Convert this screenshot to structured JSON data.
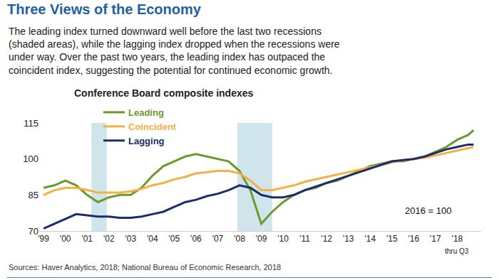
{
  "chart_data": {
    "type": "line",
    "title": "Three Views of the Economy",
    "subtitle": [
      "The leading index turned downward well before the last two recessions",
      "(shaded areas), while the lagging index dropped when the recessions were",
      "under way. Over the past two years, the leading index has outpaced the",
      "coincident index, suggesting the potential for continued economic growth."
    ],
    "chart_title": "Conference Board composite indexes",
    "annotations": [
      "2016 = 100",
      "thru Q3"
    ],
    "source": "Sources: Haver Analytics, 2018; National Bureau of Economic Research, 2018",
    "x": [
      1999,
      1999.5,
      2000,
      2000.5,
      2001,
      2001.5,
      2002,
      2002.5,
      2003,
      2003.5,
      2004,
      2004.5,
      2005,
      2005.5,
      2006,
      2006.5,
      2007,
      2007.5,
      2008,
      2008.5,
      2009,
      2009.5,
      2010,
      2010.5,
      2011,
      2011.5,
      2012,
      2012.5,
      2013,
      2013.5,
      2014,
      2014.5,
      2015,
      2015.5,
      2016,
      2016.5,
      2017,
      2017.5,
      2018,
      2018.5,
      2018.75
    ],
    "series": [
      {
        "name": "Leading",
        "color": "#6b9a2c",
        "values": [
          88,
          89,
          91,
          89,
          85,
          82,
          84,
          85,
          85,
          88,
          93,
          97,
          99,
          101,
          102,
          101,
          100,
          99,
          95,
          87,
          73,
          78,
          82,
          85,
          87,
          88,
          90,
          91,
          93,
          95,
          97,
          98,
          99,
          99,
          100,
          101,
          103,
          105,
          108,
          110,
          112
        ]
      },
      {
        "name": "Coincident",
        "color": "#f4b042",
        "values": [
          85,
          87,
          88,
          88,
          87,
          86,
          86,
          86,
          86.5,
          87.5,
          89,
          90,
          91.5,
          92.5,
          94,
          94.5,
          95,
          95,
          94,
          91,
          87,
          87,
          88,
          89,
          90.5,
          91.5,
          92.5,
          93.5,
          94.5,
          95.5,
          96.5,
          97.5,
          98.5,
          99.5,
          100,
          100.5,
          101.5,
          102.5,
          103.5,
          104.5,
          105
        ]
      },
      {
        "name": "Lagging",
        "color": "#1d2d6b",
        "values": [
          71,
          73,
          75,
          77,
          76.5,
          76,
          76,
          75.5,
          75.5,
          76,
          77,
          78,
          80,
          82,
          83,
          84.5,
          85.5,
          87,
          89,
          88,
          85,
          84,
          84,
          85,
          87,
          88.5,
          90,
          91.5,
          93,
          94.5,
          96,
          97.5,
          99,
          99.5,
          100,
          101,
          102.5,
          104,
          105,
          106,
          106
        ]
      }
    ],
    "recessions": [
      {
        "x0": 2001.2,
        "x1": 2001.9
      },
      {
        "x0": 2007.9,
        "x1": 2009.5
      }
    ],
    "xlim": [
      1998.8,
      2019.1
    ],
    "xticks": [
      {
        "value": 1999,
        "label": "'99"
      },
      {
        "value": 2000,
        "label": "'00"
      },
      {
        "value": 2001,
        "label": "'01"
      },
      {
        "value": 2002,
        "label": "'02"
      },
      {
        "value": 2003,
        "label": "'03"
      },
      {
        "value": 2004,
        "label": "'04"
      },
      {
        "value": 2005,
        "label": "'05"
      },
      {
        "value": 2006,
        "label": "'06"
      },
      {
        "value": 2007,
        "label": "'07"
      },
      {
        "value": 2008,
        "label": "'08"
      },
      {
        "value": 2009,
        "label": "'09"
      },
      {
        "value": 2010,
        "label": "'10"
      },
      {
        "value": 2011,
        "label": "'11"
      },
      {
        "value": 2012,
        "label": "'12"
      },
      {
        "value": 2013,
        "label": "'13"
      },
      {
        "value": 2014,
        "label": "'14"
      },
      {
        "value": 2015,
        "label": "'15"
      },
      {
        "value": 2016,
        "label": "'16"
      },
      {
        "value": 2017,
        "label": "'17"
      },
      {
        "value": 2018,
        "label": "'18"
      }
    ],
    "ylim": [
      70,
      115
    ],
    "yticks": [
      70,
      85,
      100,
      115
    ],
    "grid": false,
    "legend": "upper left"
  }
}
